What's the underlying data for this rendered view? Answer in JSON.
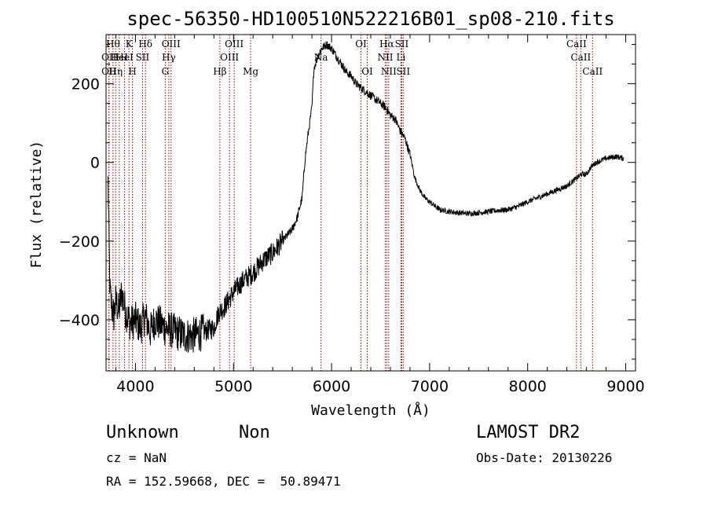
{
  "chart_data": {
    "type": "line",
    "title": "spec-56350-HD100510N522216B01_sp08-210.fits",
    "xlabel": "Wavelength (Å)",
    "ylabel": "Flux (relative)",
    "xlim": [
      3700,
      9100
    ],
    "ylim": [
      -530,
      325
    ],
    "xticks": [
      4000,
      5000,
      6000,
      7000,
      8000,
      9000
    ],
    "yticks": [
      -400,
      -200,
      0,
      200
    ],
    "x_minor_step": 200,
    "y_minor_step": 50,
    "grid": false,
    "series": [
      {
        "color": "#000000",
        "x": [
          3720,
          3740,
          3760,
          3780,
          3800,
          3830,
          3860,
          3900,
          3950,
          4000,
          4050,
          4100,
          4150,
          4200,
          4300,
          4400,
          4500,
          4600,
          4700,
          4800,
          4850,
          4900,
          5000,
          5100,
          5200,
          5300,
          5400,
          5500,
          5600,
          5650,
          5700,
          5730,
          5760,
          5800,
          5820,
          5860,
          5900,
          5950,
          6000,
          6050,
          6100,
          6150,
          6200,
          6250,
          6300,
          6350,
          6400,
          6450,
          6500,
          6550,
          6600,
          6650,
          6700,
          6750,
          6800,
          6850,
          6900,
          6950,
          7000,
          7100,
          7200,
          7300,
          7400,
          7500,
          7600,
          7700,
          7800,
          7900,
          8000,
          8100,
          8200,
          8300,
          8400,
          8500,
          8550,
          8600,
          8650,
          8700,
          8800,
          8900,
          8980
        ],
        "y": [
          -50,
          -330,
          -370,
          -390,
          -350,
          -380,
          -330,
          -380,
          -410,
          -400,
          -420,
          -390,
          -430,
          -400,
          -420,
          -430,
          -440,
          -440,
          -430,
          -420,
          -380,
          -370,
          -330,
          -300,
          -280,
          -250,
          -230,
          -200,
          -170,
          -140,
          -90,
          10,
          70,
          140,
          240,
          270,
          290,
          300,
          290,
          270,
          250,
          230,
          220,
          200,
          190,
          180,
          170,
          160,
          150,
          140,
          120,
          110,
          80,
          60,
          20,
          -40,
          -70,
          -90,
          -100,
          -120,
          -125,
          -128,
          -130,
          -128,
          -125,
          -122,
          -120,
          -112,
          -100,
          -90,
          -80,
          -70,
          -60,
          -40,
          -30,
          -30,
          -10,
          0,
          10,
          15,
          10
        ]
      }
    ],
    "line_markers": [
      {
        "x": 3730,
        "row": 2,
        "label": "OII"
      },
      {
        "x": 3730,
        "row": 3,
        "label": "OII"
      },
      {
        "x": 3771,
        "row": 1,
        "label": "Hθ"
      },
      {
        "x": 3798,
        "row": 3,
        "label": "Hη"
      },
      {
        "x": 3835,
        "row": 2,
        "label": "HeI"
      },
      {
        "x": 3889,
        "row": 2,
        "label": "HeI"
      },
      {
        "x": 3934,
        "row": 1,
        "label": "K"
      },
      {
        "x": 3969,
        "row": 3,
        "label": "H"
      },
      {
        "x": 4072,
        "row": 2,
        "label": "SII"
      },
      {
        "x": 4102,
        "row": 1,
        "label": "Hδ"
      },
      {
        "x": 4304,
        "row": 3,
        "label": "G"
      },
      {
        "x": 4340,
        "row": 2,
        "label": "Hγ"
      },
      {
        "x": 4363,
        "row": 1,
        "label": "OIII"
      },
      {
        "x": 4861,
        "row": 3,
        "label": "Hβ"
      },
      {
        "x": 4959,
        "row": 2,
        "label": "OIII"
      },
      {
        "x": 5007,
        "row": 1,
        "label": "OIII"
      },
      {
        "x": 5175,
        "row": 3,
        "label": "Mg"
      },
      {
        "x": 5892,
        "row": 2,
        "label": "Na"
      },
      {
        "x": 6300,
        "row": 1,
        "label": "OI"
      },
      {
        "x": 6364,
        "row": 3,
        "label": "OI"
      },
      {
        "x": 6548,
        "row": 2,
        "label": "NII"
      },
      {
        "x": 6563,
        "row": 1,
        "label": "Hα"
      },
      {
        "x": 6583,
        "row": 3,
        "label": "NII"
      },
      {
        "x": 6708,
        "row": 2,
        "label": "Li"
      },
      {
        "x": 6716,
        "row": 1,
        "label": "SII"
      },
      {
        "x": 6731,
        "row": 3,
        "label": "SII"
      },
      {
        "x": 8498,
        "row": 1,
        "label": "CaII"
      },
      {
        "x": 8542,
        "row": 2,
        "label": "CaII"
      },
      {
        "x": 8662,
        "row": 3,
        "label": "CaII"
      }
    ]
  },
  "info": {
    "class": "Unknown",
    "subclass": "Non",
    "survey": "LAMOST DR2",
    "cz": "cz = NaN",
    "obs_date": "Obs-Date: 20130226",
    "coords": "RA = 152.59668, DEC =  50.89471"
  },
  "colors": {
    "marker_line": "#8b0000",
    "spectrum": "#000000"
  }
}
